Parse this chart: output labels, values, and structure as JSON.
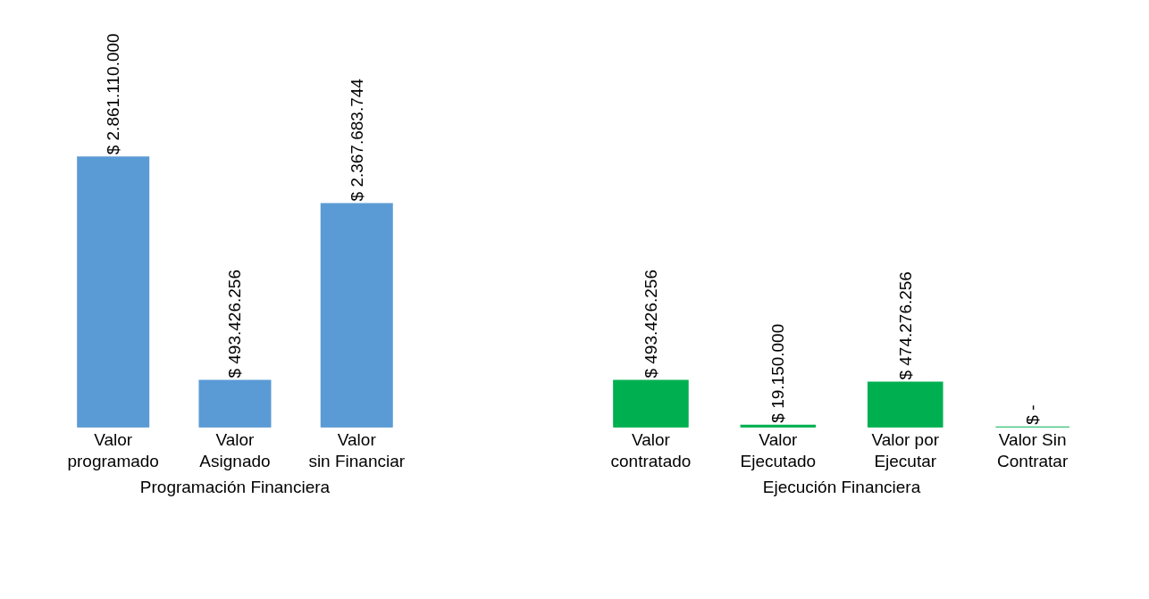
{
  "chart_data": [
    {
      "type": "bar",
      "xlabel": "Programación Financiera",
      "categories": [
        "Valor\nprogramado",
        "Valor\nAsignado",
        "Valor\nsin Financiar"
      ],
      "values": [
        2861110000,
        493426256,
        2367683744
      ],
      "value_labels": [
        "$ 2.861.110.000",
        "$ 493.426.256",
        "$ 2.367.683.744"
      ],
      "color": "#5b9bd5"
    },
    {
      "type": "bar",
      "xlabel": "Ejecución Financiera",
      "categories": [
        "Valor\ncontratado",
        "Valor\nEjecutado",
        "Valor por\nEjecutar",
        "Valor Sin\nContratar"
      ],
      "values": [
        493426256,
        19150000,
        474276256,
        0
      ],
      "value_labels": [
        "$ 493.426.256",
        "$ 19.150.000",
        "$ 474.276.256",
        "$ -"
      ],
      "color": "#00b050"
    }
  ]
}
